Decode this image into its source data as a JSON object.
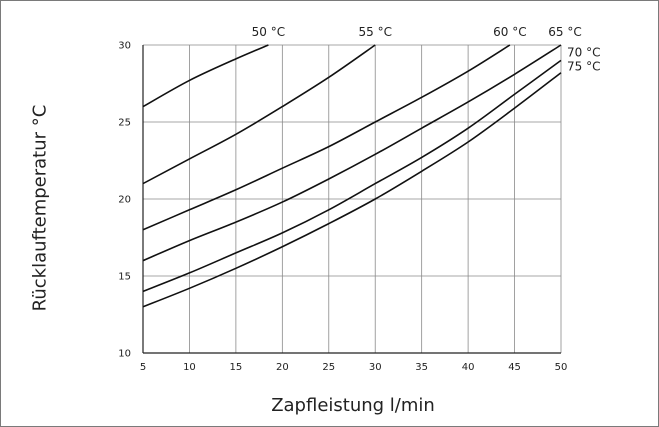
{
  "chart_data": {
    "type": "line",
    "xlabel": "Zapfleistung l/min",
    "ylabel": "Rücklauftemperatur °C",
    "xlim": [
      5,
      50
    ],
    "ylim": [
      10,
      30
    ],
    "x_ticks": [
      "5",
      "10",
      "15",
      "20",
      "25",
      "30",
      "35",
      "40",
      "45",
      "50"
    ],
    "y_ticks": [
      "10",
      "15",
      "20",
      "25",
      "30"
    ],
    "grid": true,
    "series": [
      {
        "name": "50 °C",
        "x": [
          5,
          10,
          15,
          18.5
        ],
        "y": [
          26,
          27.7,
          29.1,
          30
        ]
      },
      {
        "name": "55 °C",
        "x": [
          5,
          10,
          15,
          20,
          25,
          30
        ],
        "y": [
          21,
          22.6,
          24.2,
          26,
          27.9,
          30
        ]
      },
      {
        "name": "60 °C",
        "x": [
          5,
          10,
          15,
          20,
          25,
          30,
          35,
          40,
          44.5
        ],
        "y": [
          18,
          19.3,
          20.6,
          22,
          23.4,
          25,
          26.6,
          28.3,
          30
        ]
      },
      {
        "name": "65 °C",
        "x": [
          5,
          10,
          15,
          20,
          25,
          30,
          35,
          40,
          45,
          50
        ],
        "y": [
          16,
          17.3,
          18.5,
          19.8,
          21.3,
          22.9,
          24.6,
          26.3,
          28.1,
          30
        ]
      },
      {
        "name": "70 °C",
        "x": [
          5,
          10,
          15,
          20,
          25,
          30,
          35,
          40,
          45,
          50
        ],
        "y": [
          14,
          15.2,
          16.5,
          17.8,
          19.3,
          21,
          22.7,
          24.6,
          26.8,
          29
        ]
      },
      {
        "name": "75 °C",
        "x": [
          5,
          10,
          15,
          20,
          25,
          30,
          35,
          40,
          45,
          50
        ],
        "y": [
          13,
          14.2,
          15.5,
          16.9,
          18.4,
          20,
          21.8,
          23.7,
          25.9,
          28.2
        ]
      }
    ]
  }
}
